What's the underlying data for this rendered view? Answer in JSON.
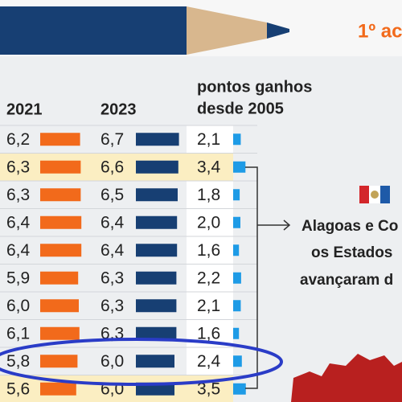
{
  "header": {
    "badge": "1º ac"
  },
  "table": {
    "headers": [
      "2021",
      "2023",
      "pontos ganhos",
      "desde 2005"
    ],
    "values_2021": [
      6.2,
      6.3,
      6.3,
      6.4,
      6.4,
      5.9,
      6.0,
      6.1,
      5.8,
      5.6
    ],
    "value_labels_2021": [
      "6,2",
      "6,3",
      "6,3",
      "6,4",
      "6,4",
      "5,9",
      "6,0",
      "6,1",
      "5,8",
      "5,6"
    ],
    "values_2023": [
      6.7,
      6.6,
      6.5,
      6.4,
      6.4,
      6.3,
      6.3,
      6.3,
      6.0,
      6.0
    ],
    "value_labels_2023": [
      "6,7",
      "6,6",
      "6,5",
      "6,4",
      "6,4",
      "6,3",
      "6,3",
      "6,3",
      "6,0",
      "6,0"
    ],
    "gains": [
      2.1,
      3.4,
      1.8,
      2.0,
      1.6,
      2.2,
      2.1,
      1.6,
      2.4,
      3.5
    ],
    "gain_labels": [
      "2,1",
      "3,4",
      "1,8",
      "2,0",
      "1,6",
      "2,2",
      "2,1",
      "1,6",
      "2,4",
      "3,5"
    ],
    "highlighted": [
      false,
      true,
      false,
      false,
      false,
      false,
      false,
      false,
      false,
      true
    ]
  },
  "note": {
    "lines": [
      "Alagoas e Co",
      "os Estados",
      "avançaram d"
    ]
  }
}
